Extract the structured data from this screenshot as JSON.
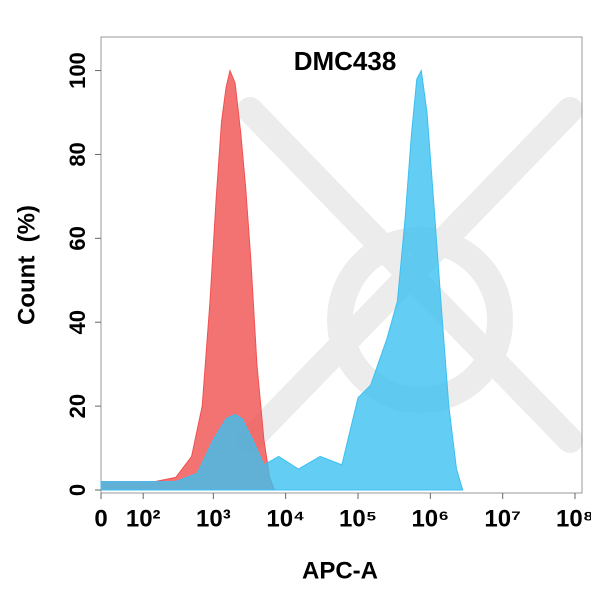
{
  "chart_data": {
    "type": "area",
    "title": "DMC438",
    "xlabel": "APC-A",
    "ylabel": "Count  (%)",
    "xscale": "biexponential",
    "xlim": [
      0,
      100000000
    ],
    "ylim": [
      0,
      108
    ],
    "xticks": [
      0,
      {
        "value": 100,
        "label": "10²"
      },
      {
        "value": 1000,
        "label": "10³"
      },
      {
        "value": 10000,
        "label": "10⁴"
      },
      {
        "value": 100000,
        "label": "10⁵"
      },
      {
        "value": 1000000,
        "label": "10⁶"
      },
      {
        "value": 10000000,
        "label": "10⁷"
      },
      {
        "value": 100000000,
        "label": "10⁸"
      }
    ],
    "yticks": [
      0,
      20,
      40,
      60,
      80,
      100
    ],
    "series": [
      {
        "color": "#f05050",
        "x": [
          0,
          150,
          300,
          500,
          700,
          900,
          1100,
          1300,
          1500,
          1700,
          2000,
          2400,
          2800,
          3300,
          4000,
          5000,
          6000,
          7000
        ],
        "values": [
          2,
          2,
          3,
          8,
          20,
          45,
          70,
          88,
          96,
          100,
          97,
          85,
          72,
          55,
          30,
          12,
          3,
          0
        ]
      },
      {
        "color": "#3cc0f0",
        "x": [
          0,
          300,
          600,
          1000,
          1500,
          2000,
          2500,
          3500,
          5000,
          8000,
          15000,
          30000,
          60000,
          100000,
          150000,
          250000,
          350000,
          450000,
          550000,
          650000,
          750000,
          900000,
          1100000,
          1400000,
          1800000,
          2300000,
          2800000
        ],
        "values": [
          2,
          2,
          4,
          12,
          17,
          18,
          17,
          12,
          6,
          8,
          5,
          8,
          6,
          22,
          25,
          36,
          45,
          65,
          85,
          98,
          100,
          90,
          70,
          45,
          20,
          5,
          0
        ]
      }
    ]
  }
}
